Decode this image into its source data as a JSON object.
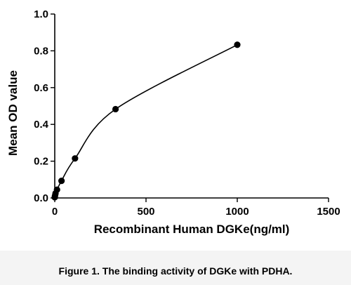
{
  "chart_data": {
    "type": "scatter",
    "xlabel": "Recombinant Human DGKe(ng/ml)",
    "ylabel": "Mean OD value",
    "xlim": [
      0,
      1500
    ],
    "ylim": [
      0,
      1.0
    ],
    "x_ticks": [
      0,
      500,
      1000,
      1500
    ],
    "y_ticks": [
      0.0,
      0.2,
      0.4,
      0.6,
      0.8,
      1.0
    ],
    "x_tick_labels": [
      "0",
      "500",
      "1000",
      "1500"
    ],
    "y_tick_labels": [
      "0.0",
      "0.2",
      "0.4",
      "0.6",
      "0.8",
      "1.0"
    ],
    "grid": false,
    "fit_line": true,
    "series": [
      {
        "x": [
          0,
          1.4,
          4.1,
          12.3,
          37,
          111,
          333,
          1000
        ],
        "y": [
          0.004,
          0.012,
          0.025,
          0.045,
          0.093,
          0.215,
          0.483,
          0.833
        ]
      }
    ]
  },
  "caption": "Figure 1. The binding activity of DGKe with PDHA."
}
